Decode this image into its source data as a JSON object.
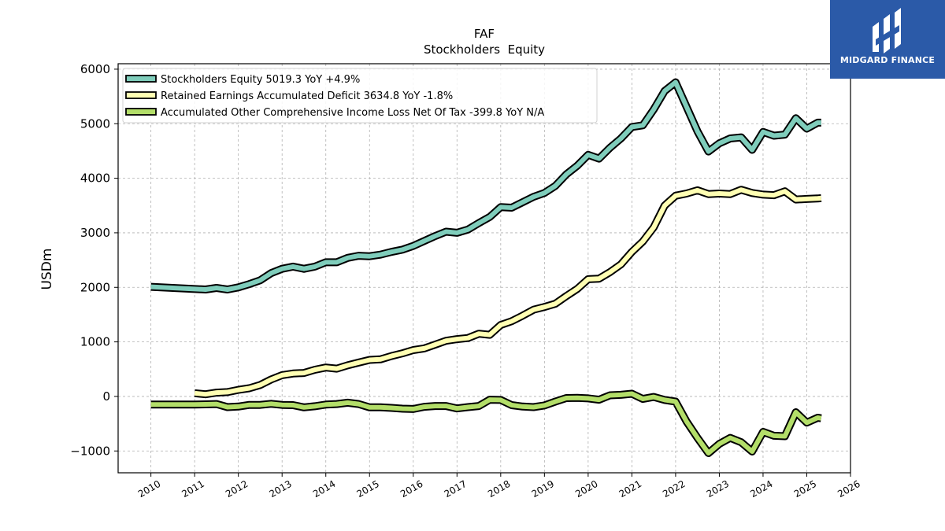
{
  "header": {
    "ticker": "FAF",
    "subtitle": "Stockholders  Equity"
  },
  "logo": {
    "text": "MIDGARD FINANCE",
    "background": "#2b5aa8"
  },
  "chart_data": {
    "type": "line",
    "title": "FAF",
    "subtitle": "Stockholders  Equity",
    "ylabel": "USDm",
    "xlabel": "",
    "xlim": [
      2009.25,
      2026.0
    ],
    "ylim": [
      -1400,
      6100
    ],
    "x_ticks": [
      "2010",
      "2011",
      "2012",
      "2013",
      "2014",
      "2015",
      "2016",
      "2017",
      "2018",
      "2019",
      "2020",
      "2021",
      "2022",
      "2023",
      "2024",
      "2025",
      "2026"
    ],
    "y_ticks": [
      "−1000",
      "0",
      "1000",
      "2000",
      "3000",
      "4000",
      "5000",
      "6000"
    ],
    "grid": true,
    "legend_position": "top-left",
    "series": [
      {
        "name": "Stockholders Equity",
        "legend": "Stockholders Equity  5019.3 YoY +4.9%",
        "color": "#7fcdbb",
        "points": [
          [
            2010.0,
            2010
          ],
          [
            2011.25,
            1960
          ],
          [
            2011.5,
            1990
          ],
          [
            2011.75,
            1960
          ],
          [
            2012.0,
            2000
          ],
          [
            2012.25,
            2060
          ],
          [
            2012.5,
            2130
          ],
          [
            2012.75,
            2260
          ],
          [
            2013.0,
            2340
          ],
          [
            2013.25,
            2380
          ],
          [
            2013.5,
            2340
          ],
          [
            2013.75,
            2380
          ],
          [
            2014.0,
            2460
          ],
          [
            2014.25,
            2460
          ],
          [
            2014.5,
            2540
          ],
          [
            2014.75,
            2580
          ],
          [
            2015.0,
            2570
          ],
          [
            2015.25,
            2600
          ],
          [
            2015.5,
            2650
          ],
          [
            2015.75,
            2690
          ],
          [
            2016.0,
            2760
          ],
          [
            2016.25,
            2850
          ],
          [
            2016.5,
            2940
          ],
          [
            2016.75,
            3020
          ],
          [
            2017.0,
            3000
          ],
          [
            2017.25,
            3060
          ],
          [
            2017.5,
            3180
          ],
          [
            2017.75,
            3290
          ],
          [
            2018.0,
            3470
          ],
          [
            2018.25,
            3460
          ],
          [
            2018.5,
            3560
          ],
          [
            2018.75,
            3660
          ],
          [
            2019.0,
            3730
          ],
          [
            2019.25,
            3860
          ],
          [
            2019.5,
            4070
          ],
          [
            2019.75,
            4230
          ],
          [
            2020.0,
            4430
          ],
          [
            2020.25,
            4360
          ],
          [
            2020.5,
            4560
          ],
          [
            2020.75,
            4730
          ],
          [
            2021.0,
            4940
          ],
          [
            2021.25,
            4970
          ],
          [
            2021.5,
            5260
          ],
          [
            2021.75,
            5600
          ],
          [
            2022.0,
            5760
          ],
          [
            2022.25,
            5310
          ],
          [
            2022.5,
            4860
          ],
          [
            2022.75,
            4490
          ],
          [
            2023.0,
            4640
          ],
          [
            2023.25,
            4730
          ],
          [
            2023.5,
            4750
          ],
          [
            2023.75,
            4520
          ],
          [
            2024.0,
            4850
          ],
          [
            2024.25,
            4780
          ],
          [
            2024.5,
            4800
          ],
          [
            2024.75,
            5100
          ],
          [
            2025.0,
            4910
          ],
          [
            2025.25,
            5020
          ],
          [
            2025.33,
            5020
          ]
        ]
      },
      {
        "name": "Retained Earnings Accumulated Deficit",
        "legend": "Retained Earnings Accumulated Deficit  3634.8 YoY -1.8%",
        "color": "#ffffb3",
        "points": [
          [
            2011.0,
            60
          ],
          [
            2011.25,
            40
          ],
          [
            2011.5,
            70
          ],
          [
            2011.75,
            80
          ],
          [
            2012.0,
            120
          ],
          [
            2012.25,
            150
          ],
          [
            2012.5,
            210
          ],
          [
            2012.75,
            310
          ],
          [
            2013.0,
            390
          ],
          [
            2013.25,
            420
          ],
          [
            2013.5,
            430
          ],
          [
            2013.75,
            490
          ],
          [
            2014.0,
            530
          ],
          [
            2014.25,
            510
          ],
          [
            2014.5,
            570
          ],
          [
            2014.75,
            620
          ],
          [
            2015.0,
            670
          ],
          [
            2015.25,
            680
          ],
          [
            2015.5,
            740
          ],
          [
            2015.75,
            790
          ],
          [
            2016.0,
            850
          ],
          [
            2016.25,
            880
          ],
          [
            2016.5,
            950
          ],
          [
            2016.75,
            1020
          ],
          [
            2017.0,
            1050
          ],
          [
            2017.25,
            1070
          ],
          [
            2017.5,
            1150
          ],
          [
            2017.75,
            1130
          ],
          [
            2018.0,
            1310
          ],
          [
            2018.25,
            1380
          ],
          [
            2018.5,
            1480
          ],
          [
            2018.75,
            1590
          ],
          [
            2019.0,
            1640
          ],
          [
            2019.25,
            1700
          ],
          [
            2019.5,
            1840
          ],
          [
            2019.75,
            1970
          ],
          [
            2020.0,
            2150
          ],
          [
            2020.25,
            2160
          ],
          [
            2020.5,
            2280
          ],
          [
            2020.75,
            2420
          ],
          [
            2021.0,
            2650
          ],
          [
            2021.25,
            2840
          ],
          [
            2021.5,
            3100
          ],
          [
            2021.75,
            3500
          ],
          [
            2022.0,
            3680
          ],
          [
            2022.25,
            3720
          ],
          [
            2022.5,
            3780
          ],
          [
            2022.75,
            3710
          ],
          [
            2023.0,
            3720
          ],
          [
            2023.25,
            3710
          ],
          [
            2023.5,
            3790
          ],
          [
            2023.75,
            3730
          ],
          [
            2024.0,
            3700
          ],
          [
            2024.25,
            3690
          ],
          [
            2024.5,
            3760
          ],
          [
            2024.75,
            3610
          ],
          [
            2025.0,
            3620
          ],
          [
            2025.25,
            3630
          ],
          [
            2025.33,
            3635
          ]
        ]
      },
      {
        "name": "Accumulated Other Comprehensive Income Loss Net Of Tax",
        "legend": "Accumulated Other Comprehensive Income Loss Net Of Tax  -399.8 YoY N/A",
        "color": "#b3de69",
        "points": [
          [
            2010.0,
            -150
          ],
          [
            2011.0,
            -150
          ],
          [
            2011.25,
            -145
          ],
          [
            2011.5,
            -140
          ],
          [
            2011.75,
            -195
          ],
          [
            2012.0,
            -185
          ],
          [
            2012.25,
            -155
          ],
          [
            2012.5,
            -155
          ],
          [
            2012.75,
            -135
          ],
          [
            2013.0,
            -155
          ],
          [
            2013.25,
            -160
          ],
          [
            2013.5,
            -200
          ],
          [
            2013.75,
            -180
          ],
          [
            2014.0,
            -150
          ],
          [
            2014.25,
            -140
          ],
          [
            2014.5,
            -115
          ],
          [
            2014.75,
            -140
          ],
          [
            2015.0,
            -200
          ],
          [
            2015.25,
            -200
          ],
          [
            2015.5,
            -210
          ],
          [
            2015.75,
            -225
          ],
          [
            2016.0,
            -230
          ],
          [
            2016.25,
            -190
          ],
          [
            2016.5,
            -175
          ],
          [
            2016.75,
            -175
          ],
          [
            2017.0,
            -220
          ],
          [
            2017.25,
            -195
          ],
          [
            2017.5,
            -175
          ],
          [
            2017.75,
            -60
          ],
          [
            2018.0,
            -65
          ],
          [
            2018.25,
            -160
          ],
          [
            2018.5,
            -185
          ],
          [
            2018.75,
            -195
          ],
          [
            2019.0,
            -165
          ],
          [
            2019.25,
            -95
          ],
          [
            2019.5,
            -30
          ],
          [
            2019.75,
            -25
          ],
          [
            2020.0,
            -35
          ],
          [
            2020.25,
            -60
          ],
          [
            2020.5,
            20
          ],
          [
            2020.75,
            30
          ],
          [
            2021.0,
            50
          ],
          [
            2021.25,
            -45
          ],
          [
            2021.5,
            -10
          ],
          [
            2021.75,
            -65
          ],
          [
            2022.0,
            -95
          ],
          [
            2022.25,
            -460
          ],
          [
            2022.5,
            -760
          ],
          [
            2022.75,
            -1040
          ],
          [
            2023.0,
            -870
          ],
          [
            2023.25,
            -760
          ],
          [
            2023.5,
            -840
          ],
          [
            2023.75,
            -1010
          ],
          [
            2024.0,
            -650
          ],
          [
            2024.25,
            -720
          ],
          [
            2024.5,
            -730
          ],
          [
            2024.75,
            -290
          ],
          [
            2025.0,
            -480
          ],
          [
            2025.25,
            -390
          ],
          [
            2025.33,
            -400
          ]
        ]
      }
    ]
  }
}
